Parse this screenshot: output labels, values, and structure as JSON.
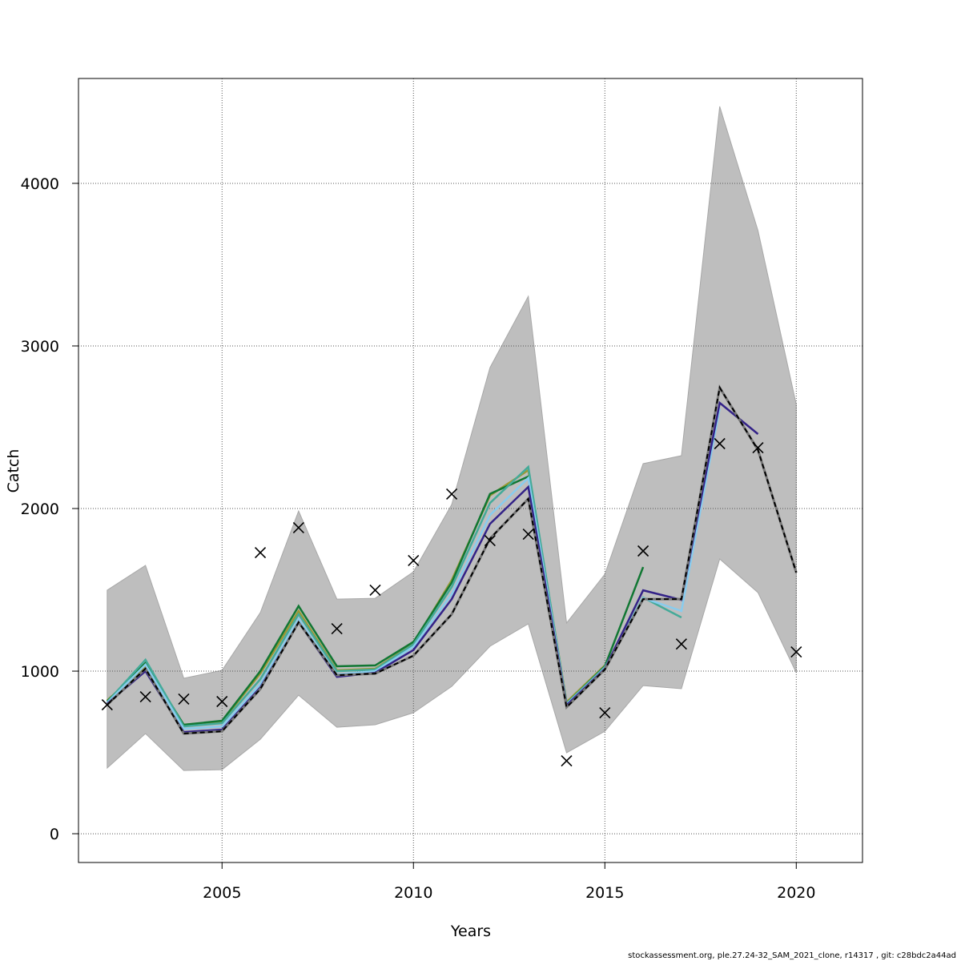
{
  "chart_data": {
    "type": "line",
    "title": "",
    "xlabel": "Years",
    "ylabel": "Catch",
    "xlim": [
      2001.25,
      2021.73
    ],
    "ylim": [
      -177,
      4645
    ],
    "x_ticks": [
      2005,
      2010,
      2015,
      2020
    ],
    "y_ticks": [
      0,
      1000,
      2000,
      3000,
      4000
    ],
    "grid": true,
    "legend": "none",
    "confidence_band": {
      "color": "#bebebe",
      "x": [
        2002,
        2003,
        2004,
        2005,
        2006,
        2007,
        2008,
        2009,
        2010,
        2011,
        2012,
        2013,
        2014,
        2015,
        2016,
        2017,
        2018,
        2019,
        2020
      ],
      "upper": [
        1498,
        1650,
        956,
        1005,
        1360,
        1985,
        1443,
        1448,
        1611,
        2025,
        2867,
        3305,
        1296,
        1596,
        2276,
        2325,
        4473,
        3709,
        2640
      ],
      "lower": [
        404,
        616,
        389,
        394,
        581,
        852,
        655,
        670,
        744,
        906,
        1153,
        1291,
        498,
        630,
        911,
        892,
        1690,
        1483,
        990
      ]
    },
    "series": [
      {
        "color": "#999933",
        "dashed": false,
        "x": [
          2002,
          2003,
          2004,
          2005,
          2006,
          2007,
          2008,
          2009,
          2010,
          2011,
          2012,
          2013,
          2014,
          2015
        ],
        "values": [
          820,
          1030,
          670,
          690,
          985,
          1370,
          1005,
          1015,
          1170,
          1560,
          2080,
          2236,
          810,
          1035
        ]
      },
      {
        "color": "#117733",
        "dashed": false,
        "x": [
          2002,
          2003,
          2004,
          2005,
          2006,
          2007,
          2008,
          2009,
          2010,
          2011,
          2012,
          2013,
          2014,
          2015,
          2016
        ],
        "values": [
          815,
          1050,
          670,
          695,
          1000,
          1400,
          1030,
          1035,
          1180,
          1545,
          2090,
          2197,
          800,
          1030,
          1640
        ]
      },
      {
        "color": "#44AA99",
        "dashed": false,
        "x": [
          2002,
          2003,
          2004,
          2005,
          2006,
          2007,
          2008,
          2009,
          2010,
          2011,
          2012,
          2013,
          2014,
          2015,
          2016,
          2017
        ],
        "values": [
          810,
          1070,
          660,
          680,
          950,
          1350,
          1000,
          1010,
          1165,
          1517,
          2034,
          2256,
          800,
          1025,
          1453,
          1330
        ]
      },
      {
        "color": "#88CCEE",
        "dashed": false,
        "x": [
          2002,
          2003,
          2004,
          2005,
          2006,
          2007,
          2008,
          2009,
          2010,
          2011,
          2012,
          2013,
          2014,
          2015,
          2016,
          2017,
          2018
        ],
        "values": [
          805,
          1040,
          645,
          660,
          920,
          1320,
          980,
          1000,
          1150,
          1473,
          1960,
          2188,
          795,
          1020,
          1450,
          1370,
          2616
        ]
      },
      {
        "color": "#332288",
        "dashed": false,
        "x": [
          2002,
          2003,
          2004,
          2005,
          2006,
          2007,
          2008,
          2009,
          2010,
          2011,
          2012,
          2013,
          2014,
          2015,
          2016,
          2017,
          2018,
          2019
        ],
        "values": [
          800,
          1000,
          625,
          640,
          900,
          1300,
          965,
          990,
          1130,
          1443,
          1906,
          2133,
          790,
          1015,
          1497,
          1438,
          2650,
          2458
        ]
      },
      {
        "color": "#000000",
        "dashed": true,
        "x": [
          2002,
          2003,
          2004,
          2005,
          2006,
          2007,
          2008,
          2009,
          2010,
          2011,
          2012,
          2013,
          2014,
          2015,
          2016,
          2017,
          2018,
          2019,
          2020
        ],
        "values": [
          793,
          1015,
          616,
          630,
          890,
          1300,
          975,
          985,
          1095,
          1350,
          1815,
          2060,
          778,
          1010,
          1443,
          1443,
          2744,
          2360,
          1606
        ]
      }
    ],
    "observations": {
      "marker": "x",
      "x": [
        2002,
        2003,
        2004,
        2005,
        2006,
        2007,
        2008,
        2009,
        2010,
        2011,
        2012,
        2013,
        2014,
        2015,
        2016,
        2017,
        2018,
        2019,
        2020
      ],
      "values": [
        793,
        842,
        828,
        813,
        1729,
        1882,
        1261,
        1498,
        1680,
        2089,
        1803,
        1842,
        448,
        744,
        1739,
        1167,
        2399,
        2374,
        1118
      ]
    }
  },
  "footer": "stockassessment.org, ple.27.24-32_SAM_2021_clone, r14317 , git: c28bdc2a44ad"
}
